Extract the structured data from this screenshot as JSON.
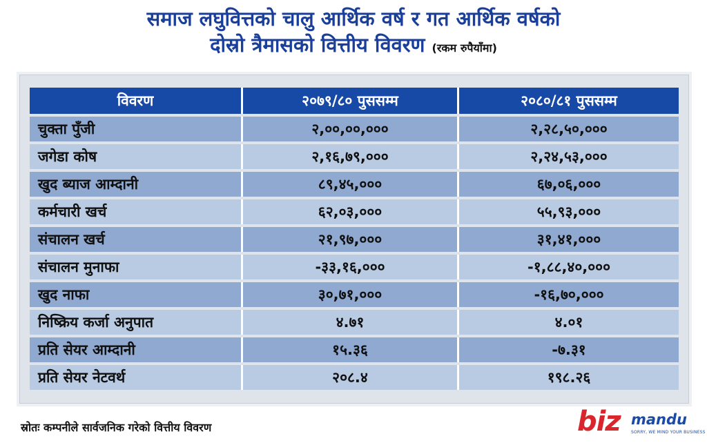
{
  "title": {
    "line1": "समाज लघुवित्तको चालु आर्थिक वर्ष र गत आर्थिक वर्षको",
    "line2": "दोस्रो त्रैमासको वित्तीय विवरण",
    "note": "(रकम रुपैयाँमा)"
  },
  "chart_data": {
    "type": "table",
    "title": "समाज लघुवित्तको चालु आर्थिक वर्ष र गत आर्थिक वर्षको दोस्रो त्रैमासको वित्तीय विवरण",
    "unit_note": "(रकम रुपैयाँमा)",
    "columns": [
      "विवरण",
      "२०७९/८० पुससम्म",
      "२०८०/८१ पुससम्म"
    ],
    "rows": [
      [
        "चुक्ता पुँजी",
        "२,००,००,०००",
        "२,२८,५०,०००"
      ],
      [
        "जगेडा कोष",
        "२,१६,७९,०००",
        "२,२४,५३,०००"
      ],
      [
        "खुद ब्याज आम्दानी",
        "८९,४५,०००",
        "६७,०६,०००"
      ],
      [
        "कर्मचारी खर्च",
        "६२,०३,०००",
        "५५,९३,०००"
      ],
      [
        "संचालन खर्च",
        "२१,९७,०००",
        "३१,४१,०००"
      ],
      [
        "संचालन मुनाफा",
        "-३३,१६,०००",
        "-१,८८,४०,०००"
      ],
      [
        "खुद नाफा",
        "३०,७१,०००",
        "-१६,७०,०००"
      ],
      [
        "निष्क्रिय कर्जा अनुपात",
        "४.७१",
        "४.०१"
      ],
      [
        "प्रति सेयर आम्दानी",
        "१५.३६",
        "-७.३१"
      ],
      [
        "प्रति सेयर नेटवर्थ",
        "२०८.४",
        "१९८.२६"
      ]
    ],
    "colors": {
      "header": "#1749a6",
      "row_dark": "#8fa9d1",
      "row_light": "#b9cbe3"
    }
  },
  "source": "स्रोतः कम्पनीले सार्वजनिक गरेको वित्तीय विवरण",
  "logo": {
    "biz": "biz",
    "mandu": "mandu",
    "tagline": "SORRY, WE MIND YOUR BUSINESS"
  }
}
